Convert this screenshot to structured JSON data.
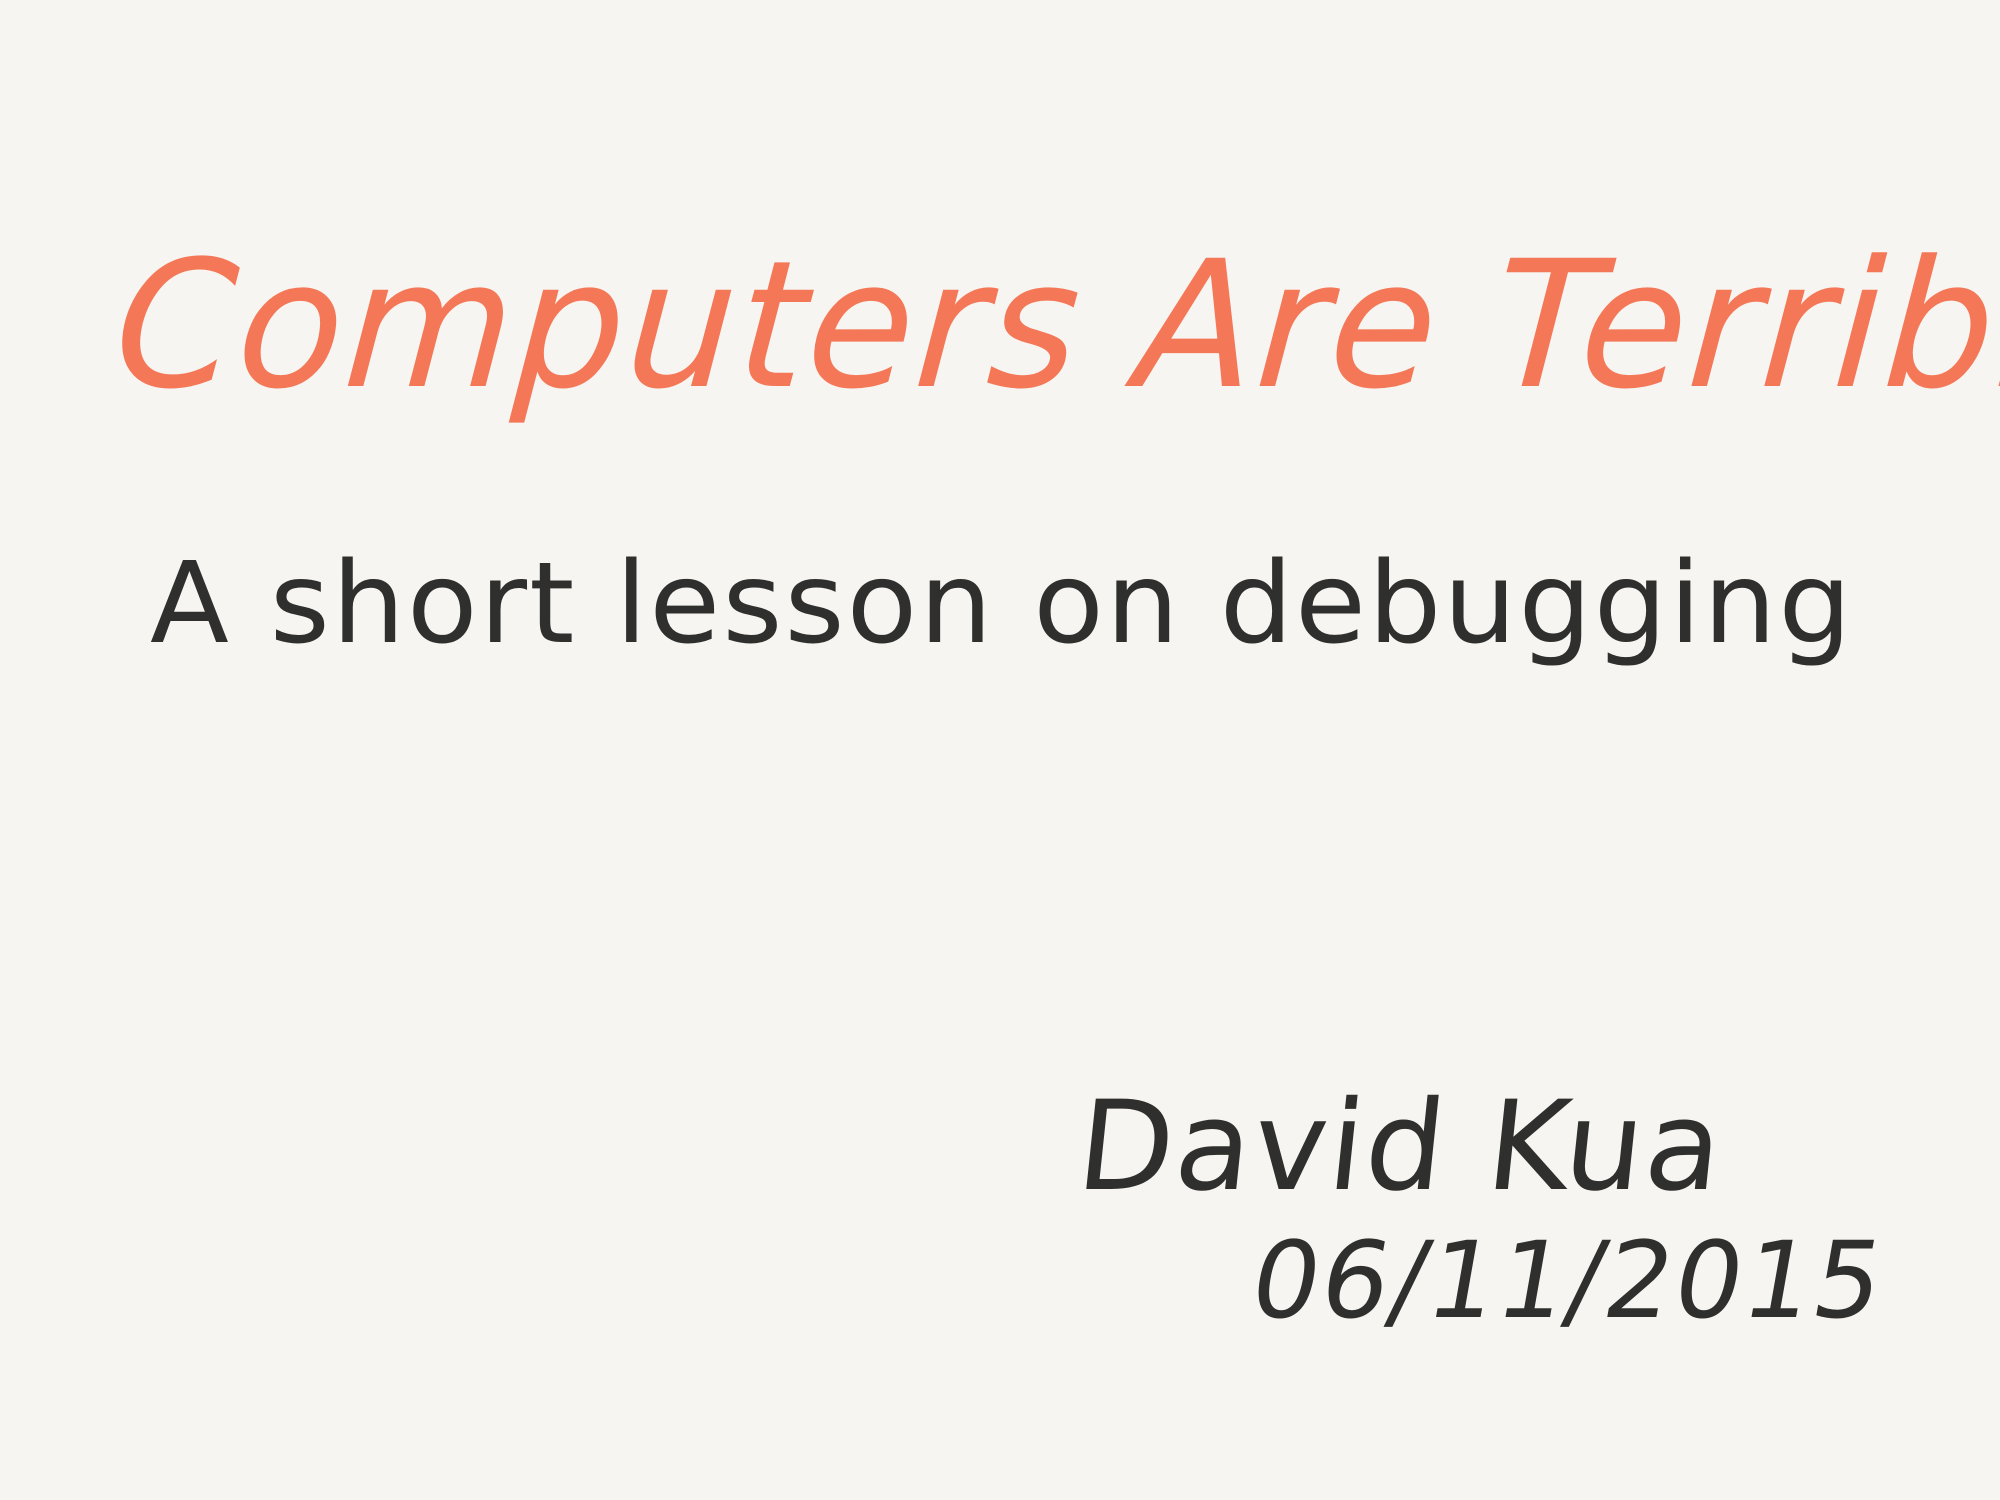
{
  "slide": {
    "title": "Computers Are Terrible",
    "subtitle": "A short lesson on debugging",
    "author": "David Kua",
    "date": "06/11/2015"
  },
  "colors": {
    "background": "#f7f5f1",
    "title": "#f47857",
    "body_text": "#2f2f2d"
  }
}
